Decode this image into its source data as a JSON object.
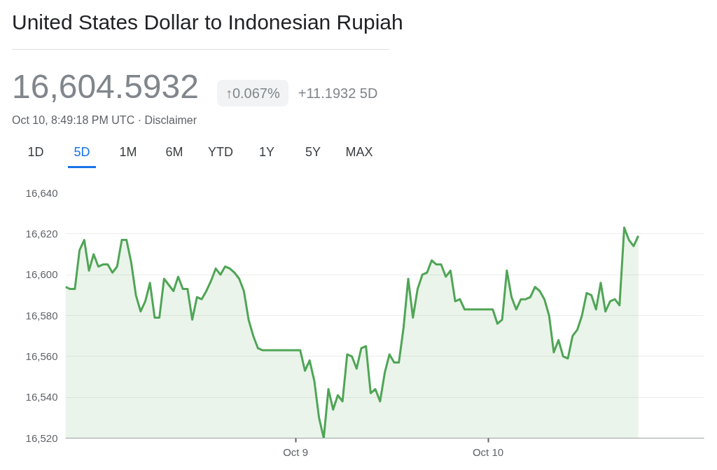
{
  "chart_data": {
    "type": "area",
    "title": "United States Dollar to Indonesian Rupiah",
    "subtitle": "16,604.5932",
    "annotations": [
      "↑0.067%",
      "+11.1932 5D",
      "Oct 10, 8:49:18 PM UTC · Disclaimer",
      "1D",
      "5D",
      "1M",
      "6M",
      "YTD",
      "1Y",
      "5Y",
      "MAX"
    ],
    "categories": [
      null,
      null,
      null,
      null,
      null,
      null,
      null,
      null,
      null,
      null,
      null,
      null,
      null,
      null,
      null,
      null,
      null,
      null,
      null,
      null,
      null,
      null,
      null,
      null,
      null,
      null,
      null,
      null,
      null,
      null,
      null,
      null,
      null,
      null,
      null,
      null,
      null,
      null,
      null,
      null,
      null,
      null,
      null,
      null,
      null,
      null,
      null,
      null,
      null,
      "Oct 9",
      null,
      null,
      null,
      null,
      null,
      null,
      null,
      null,
      null,
      null,
      null,
      null,
      null,
      null,
      null,
      null,
      null,
      null,
      null,
      null,
      null,
      null,
      null,
      null,
      null,
      null,
      null,
      null,
      null,
      null,
      null,
      null,
      null,
      null,
      null,
      null,
      null,
      null,
      null,
      null,
      "Oct 10",
      null,
      null,
      null,
      null,
      null,
      null,
      null,
      null,
      null,
      null,
      null,
      null,
      null,
      null,
      null,
      null,
      null,
      null,
      null,
      null,
      null,
      null,
      null,
      null,
      null,
      null,
      null,
      null,
      null,
      null,
      null,
      null,
      null,
      null,
      null,
      null,
      null,
      null,
      null,
      null,
      null,
      null,
      null,
      null,
      null,
      null
    ],
    "series": [
      {
        "color": "#4fa556",
        "values": [
          16594,
          16593,
          16593,
          16612,
          16617,
          16602,
          16610,
          16604,
          16605,
          16605,
          16601,
          16604,
          16617,
          16617,
          16606,
          16590,
          16582,
          16587,
          16596,
          16579,
          16579,
          16598,
          16595,
          16592,
          16599,
          16593,
          16593,
          16578,
          16589,
          16588,
          16592,
          16597,
          16603,
          16600,
          16604,
          16603,
          16601,
          16598,
          16592,
          16578,
          16570,
          16564,
          16563,
          16563,
          16563,
          16563,
          16563,
          16563,
          16563,
          16563,
          16563,
          16553,
          16558,
          16548,
          16530,
          16520,
          16544,
          16534,
          16541,
          16538,
          16561,
          16560,
          16554,
          16564,
          16565,
          16542,
          16544,
          16538,
          16552,
          16561,
          16557,
          16557,
          16574,
          16598,
          16579,
          16593,
          16600,
          16601,
          16607,
          16605,
          16605,
          16599,
          16602,
          16587,
          16588,
          16583,
          16583,
          16583,
          16583,
          16583,
          16583,
          16583,
          16576,
          16578,
          16602,
          16589,
          16583,
          16588,
          16588,
          16589,
          16594,
          16592,
          16588,
          16580,
          16562,
          16568,
          16560,
          16559,
          16570,
          16573,
          16580,
          16591,
          16590,
          16583,
          16596,
          16582,
          16587,
          16588,
          16585,
          16623,
          16617,
          16614,
          16619,
          null,
          null,
          null,
          null,
          null,
          null,
          null,
          null,
          null,
          null,
          null,
          null,
          null,
          null
        ]
      }
    ],
    "ylim": [
      16520,
      16640
    ],
    "yticks": [
      {
        "value": 16520,
        "label": "16,520"
      },
      {
        "value": 16540,
        "label": "16,540"
      },
      {
        "value": 16560,
        "label": "16,560"
      },
      {
        "value": 16580,
        "label": "16,580"
      },
      {
        "value": 16600,
        "label": "16,600"
      },
      {
        "value": 16620,
        "label": "16,620"
      },
      {
        "value": 16640,
        "label": "16,640"
      }
    ],
    "grid": "y"
  }
}
